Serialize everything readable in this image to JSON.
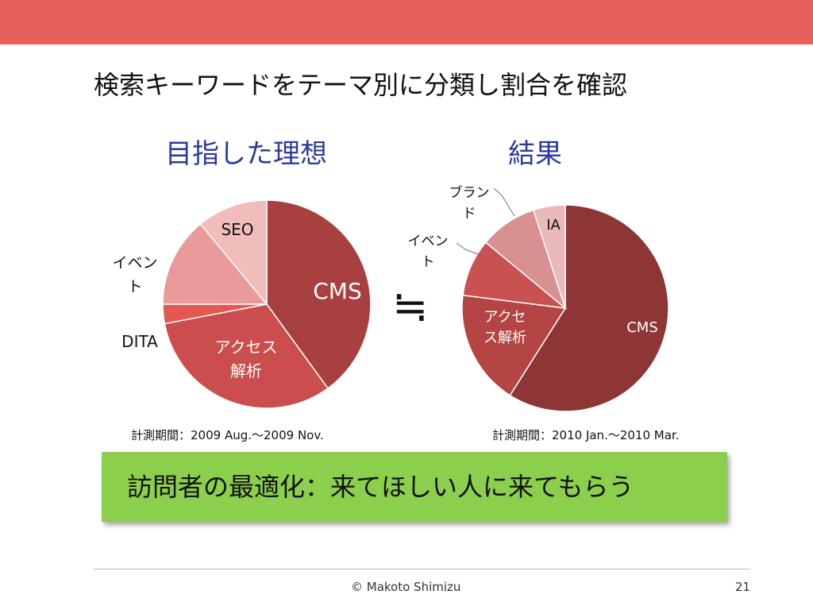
{
  "slide": {
    "title": "検索キーワードをテーマ別に分類し割合を確認",
    "approx_symbol": "≒",
    "banner_text": "訪問者の最適化：来てほしい人に来てもらう",
    "footer": "© Makoto Shimizu",
    "page_number": "21",
    "colors": {
      "topbar": "#e75f5a",
      "heading": "#2b3a9e",
      "banner": "#8ccf4c"
    }
  },
  "chart_data": [
    {
      "type": "pie",
      "title": "目指した理想",
      "caption": "計測期間：2009 Aug.～2009 Nov.",
      "slices": [
        {
          "label": "CMS",
          "percent": 40,
          "color": "#a8403f"
        },
        {
          "label": "アクセス解析",
          "percent": 32,
          "color": "#cc4d4d"
        },
        {
          "label": "DITA",
          "percent": 3,
          "color": "#e45852"
        },
        {
          "label": "イベント",
          "percent": 14,
          "color": "#e99a99"
        },
        {
          "label": "SEO",
          "percent": 11,
          "color": "#f0bcbc"
        }
      ]
    },
    {
      "type": "pie",
      "title": "結果",
      "caption": "計測期間：2010 Jan.～2010 Mar.",
      "slices": [
        {
          "label": "CMS",
          "percent": 59,
          "color": "#8e3535"
        },
        {
          "label": "アクセス解析",
          "percent": 18,
          "color": "#b54444"
        },
        {
          "label": "イベント",
          "percent": 9,
          "color": "#c85252"
        },
        {
          "label": "ブランド",
          "percent": 9,
          "color": "#d89090"
        },
        {
          "label": "IA",
          "percent": 5,
          "color": "#eab9b9"
        }
      ]
    }
  ]
}
